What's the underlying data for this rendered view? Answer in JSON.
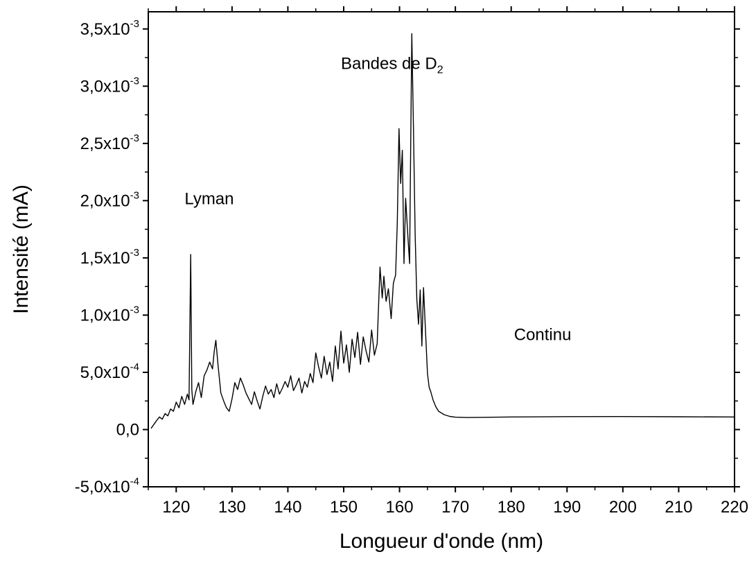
{
  "chart_data": {
    "type": "line",
    "title": "",
    "xlabel": "Longueur d'onde (nm)",
    "ylabel": "Intensité (mA)",
    "xlim": [
      115,
      220
    ],
    "ylim": [
      -0.0005,
      0.00365
    ],
    "x_ticks": [
      {
        "value": 120,
        "label": "120"
      },
      {
        "value": 130,
        "label": "130"
      },
      {
        "value": 140,
        "label": "140"
      },
      {
        "value": 150,
        "label": "150"
      },
      {
        "value": 160,
        "label": "160"
      },
      {
        "value": 170,
        "label": "170"
      },
      {
        "value": 180,
        "label": "180"
      },
      {
        "value": 190,
        "label": "190"
      },
      {
        "value": 200,
        "label": "200"
      },
      {
        "value": 210,
        "label": "210"
      },
      {
        "value": 220,
        "label": "220"
      }
    ],
    "y_ticks": [
      {
        "value": -0.0005,
        "mantissa": "-5,0x10",
        "exponent": "-4"
      },
      {
        "value": 0,
        "mantissa": "0,0",
        "exponent": ""
      },
      {
        "value": 0.0005,
        "mantissa": "5,0x10",
        "exponent": "-4"
      },
      {
        "value": 0.001,
        "mantissa": "1,0x10",
        "exponent": "-3"
      },
      {
        "value": 0.0015,
        "mantissa": "1,5x10",
        "exponent": "-3"
      },
      {
        "value": 0.002,
        "mantissa": "2,0x10",
        "exponent": "-3"
      },
      {
        "value": 0.0025,
        "mantissa": "2,5x10",
        "exponent": "-3"
      },
      {
        "value": 0.003,
        "mantissa": "3,0x10",
        "exponent": "-3"
      },
      {
        "value": 0.0035,
        "mantissa": "3,5x10",
        "exponent": "-3"
      }
    ],
    "annotations": [
      {
        "text": "Lyman",
        "subscript": "",
        "x": 121.5,
        "y": 0.00197
      },
      {
        "text": "Bandes de D",
        "subscript": "2",
        "x": 149.5,
        "y": 0.00315
      },
      {
        "text": "Continu",
        "subscript": "",
        "x": 180.5,
        "y": 0.00078
      }
    ],
    "grid": false,
    "legend": "none",
    "series": [
      {
        "color": "#000000",
        "x": [
          115.5,
          116.5,
          117.0,
          117.5,
          118.0,
          118.5,
          119.0,
          119.5,
          120.0,
          120.5,
          121.0,
          121.5,
          122.0,
          122.3,
          122.6,
          122.8,
          123.0,
          123.5,
          124.0,
          124.5,
          125.0,
          125.5,
          126.0,
          126.5,
          126.8,
          127.1,
          127.5,
          128.0,
          128.5,
          129.0,
          129.5,
          130.0,
          130.5,
          131.0,
          131.5,
          132.0,
          132.5,
          133.0,
          133.5,
          134.0,
          134.5,
          135.0,
          135.5,
          136.0,
          136.5,
          137.0,
          137.5,
          138.0,
          138.5,
          139.0,
          139.5,
          140.0,
          140.5,
          141.0,
          141.5,
          142.0,
          142.5,
          143.0,
          143.5,
          144.0,
          144.5,
          145.0,
          145.5,
          146.0,
          146.5,
          147.0,
          147.5,
          148.0,
          148.5,
          149.0,
          149.5,
          150.0,
          150.5,
          151.0,
          151.5,
          152.0,
          152.5,
          153.0,
          153.5,
          154.0,
          154.5,
          155.0,
          155.5,
          156.0,
          156.5,
          156.9,
          157.2,
          157.6,
          158.0,
          158.5,
          158.9,
          159.3,
          159.6,
          159.9,
          160.2,
          160.5,
          160.8,
          161.1,
          161.5,
          161.8,
          162.0,
          162.2,
          162.5,
          162.8,
          163.1,
          163.4,
          163.7,
          164.0,
          164.3,
          164.6,
          165.0,
          165.3,
          165.6,
          166.0,
          166.5,
          167.0,
          168.0,
          169.0,
          170.0,
          172.0,
          175.0,
          180.0,
          190.0,
          200.0,
          210.0,
          220.0
        ],
        "y": [
          1e-05,
          8e-05,
          0.00011,
          9e-05,
          0.00014,
          0.00012,
          0.00018,
          0.00016,
          0.00024,
          0.00019,
          0.00029,
          0.00022,
          0.00031,
          0.00026,
          0.00153,
          0.00035,
          0.00022,
          0.00033,
          0.00041,
          0.00028,
          0.00047,
          0.00052,
          0.00059,
          0.00053,
          0.00068,
          0.00078,
          0.00056,
          0.00032,
          0.00025,
          0.00019,
          0.00016,
          0.00027,
          0.00041,
          0.00035,
          0.00045,
          0.00039,
          0.00032,
          0.00027,
          0.00022,
          0.00033,
          0.00025,
          0.00018,
          0.00029,
          0.00038,
          0.00031,
          0.00035,
          0.00028,
          0.0004,
          0.00031,
          0.00036,
          0.00042,
          0.00037,
          0.00047,
          0.00034,
          0.00039,
          0.00045,
          0.00032,
          0.00042,
          0.00037,
          0.00049,
          0.00041,
          0.00067,
          0.00055,
          0.00045,
          0.00064,
          0.00048,
          0.00059,
          0.00042,
          0.00073,
          0.00053,
          0.00086,
          0.00058,
          0.00074,
          0.0005,
          0.00079,
          0.00063,
          0.00085,
          0.00057,
          0.00081,
          0.00069,
          0.00059,
          0.00087,
          0.00065,
          0.00075,
          0.00142,
          0.00115,
          0.00134,
          0.00112,
          0.00123,
          0.00097,
          0.00128,
          0.00135,
          0.0018,
          0.00263,
          0.00215,
          0.00244,
          0.00145,
          0.00202,
          0.00168,
          0.00145,
          0.00249,
          0.00346,
          0.00262,
          0.00171,
          0.00114,
          0.00092,
          0.00122,
          0.00073,
          0.00124,
          0.00092,
          0.00049,
          0.00037,
          0.00033,
          0.00026,
          0.0002,
          0.00016,
          0.00013,
          0.000115,
          0.000108,
          0.000105,
          0.000107,
          0.00011,
          0.000113,
          0.000114,
          0.000112,
          0.00011
        ]
      }
    ]
  }
}
